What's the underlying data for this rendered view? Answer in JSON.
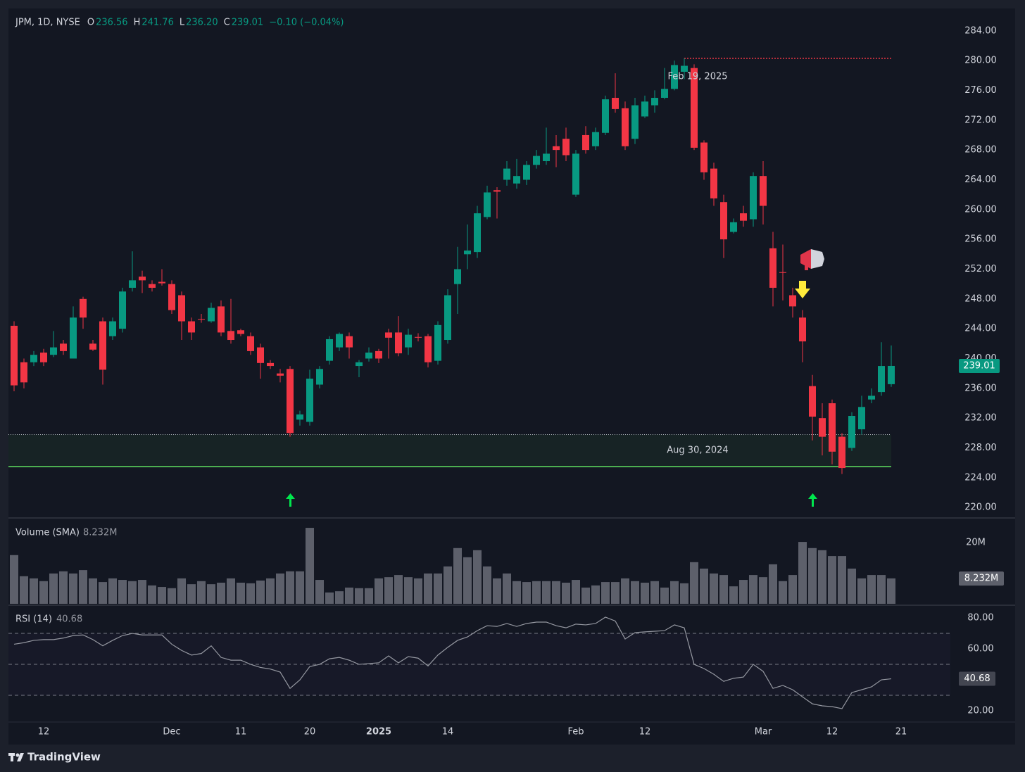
{
  "brand": "TradingView",
  "chart_data": [
    {
      "type": "candlestick",
      "symbol": "JPM, 1D, NYSE",
      "ohlc": [
        {
          "label": "O",
          "value": 236.56
        },
        {
          "label": "H",
          "value": 241.76
        },
        {
          "label": "L",
          "value": 236.2,
          "value_label": "236.20"
        },
        {
          "label": "C",
          "value": 239.01
        }
      ],
      "change": "−0.10 (−0.04%)",
      "up_color": "#089981",
      "down_color": "#f23645",
      "open": [
        244.4,
        239.5,
        239.5,
        240.8,
        240.5,
        242,
        240,
        248,
        242,
        245,
        243,
        244,
        249.5,
        251,
        250,
        250.3,
        250,
        248.5,
        245,
        245.3,
        245,
        247,
        243.7,
        243.8,
        243,
        241.5,
        239.4,
        238,
        238.6,
        231.8,
        231.5,
        236.5,
        239.7,
        241.5,
        243,
        239,
        240,
        241,
        243.5,
        243.5,
        241.5,
        242.9,
        243,
        239.7,
        242.5,
        250,
        254,
        254.3,
        259,
        262.6,
        264,
        263.5,
        264,
        266,
        266.5,
        268.5,
        269.5,
        262,
        270,
        268.5,
        270.3,
        275,
        273.6,
        269.5,
        272.5,
        274,
        275,
        276.2,
        278.5,
        279,
        269,
        265.5,
        261,
        257,
        259.5,
        258.7,
        264.5,
        254.8,
        251.6,
        248.5,
        245.5,
        236.3,
        232,
        234,
        229.5,
        228,
        230.5,
        234.5,
        235.5,
        236.56
      ],
      "high": [
        245,
        240,
        241,
        241.3,
        243.7,
        242.5,
        247,
        248.3,
        242.5,
        245.5,
        245.5,
        249.5,
        254.4,
        251.8,
        250.5,
        252,
        250.5,
        249,
        245.5,
        246,
        247.5,
        247.8,
        248,
        244,
        243.5,
        242,
        239.8,
        238.6,
        239,
        233,
        238.5,
        239,
        243,
        243.5,
        243.5,
        239.8,
        241.5,
        241.3,
        244,
        245.7,
        244,
        243.4,
        243.3,
        245,
        249.3,
        255,
        258,
        260.5,
        263.2,
        263,
        266.5,
        266.8,
        266.5,
        268,
        271,
        270,
        271,
        268,
        271.2,
        271,
        275.3,
        278.3,
        274.5,
        275,
        275.3,
        276,
        279,
        280,
        280.3,
        279.5,
        269.3,
        266.3,
        262,
        258.8,
        260.5,
        265,
        266.5,
        257,
        255.3,
        249.5,
        246.5,
        237.8,
        234,
        234.5,
        230,
        232.8,
        235,
        236,
        242.2,
        241.76
      ],
      "low": [
        235.6,
        236,
        239,
        239,
        240.2,
        240.5,
        240,
        244,
        241,
        236.5,
        242.5,
        243.5,
        249,
        248.8,
        249,
        249.8,
        246,
        242.5,
        242.5,
        244.8,
        244.8,
        243,
        242,
        243,
        240.5,
        237.3,
        238.6,
        236.8,
        229.5,
        231,
        231,
        236,
        239.2,
        241,
        240,
        237.5,
        239.6,
        239.4,
        240,
        240.3,
        240.5,
        242.3,
        238.8,
        239.2,
        242,
        246,
        252,
        253.5,
        258.7,
        258.8,
        263.2,
        262.8,
        263.3,
        265.5,
        266,
        265.7,
        266.5,
        261.7,
        267.5,
        268,
        270,
        273,
        268,
        268.8,
        272.3,
        273,
        274.8,
        276,
        277.5,
        268,
        264,
        260.5,
        253.5,
        256.8,
        257.7,
        257.7,
        258,
        247,
        247.8,
        245.5,
        239.5,
        229,
        227,
        225.8,
        224.5,
        227.6,
        229.8,
        234,
        235,
        236.2
      ],
      "close": [
        236.4,
        236.8,
        240.5,
        239.5,
        241.5,
        241,
        245.5,
        245.5,
        241.2,
        238.5,
        245,
        249,
        250.5,
        250.5,
        249.5,
        250.1,
        246.5,
        245,
        243.5,
        245.2,
        246.8,
        243.5,
        242.5,
        243.3,
        241,
        239.4,
        239,
        237.7,
        230,
        232.5,
        237.3,
        238.6,
        242.6,
        243.3,
        241.5,
        239.5,
        240.8,
        240,
        242.8,
        240.7,
        243.2,
        242.8,
        239.5,
        244.5,
        248.5,
        252,
        254.5,
        259.5,
        262.3,
        262.4,
        265.5,
        264.5,
        266,
        267.2,
        267.5,
        268,
        267.3,
        267.5,
        268,
        270.4,
        274.8,
        273.5,
        268.5,
        274,
        274.5,
        275,
        276.2,
        279.4,
        279.3,
        268.3,
        265,
        261.5,
        256,
        258.3,
        258.5,
        264.5,
        260.5,
        249.5,
        251.5,
        247,
        242.3,
        232.2,
        229.5,
        227.5,
        225.3,
        232.3,
        233.5,
        235,
        239,
        239.01
      ],
      "ylim": [
        218.6,
        287.0
      ],
      "yticks": [
        {
          "value": 284,
          "label": "284.00"
        },
        {
          "value": 280,
          "label": "280.00"
        },
        {
          "value": 276,
          "label": "276.00"
        },
        {
          "value": 272,
          "label": "272.00"
        },
        {
          "value": 268,
          "label": "268.00"
        },
        {
          "value": 264,
          "label": "264.00"
        },
        {
          "value": 260,
          "label": "260.00"
        },
        {
          "value": 256,
          "label": "256.00"
        },
        {
          "value": 252,
          "label": "252.00"
        },
        {
          "value": 248,
          "label": "248.00"
        },
        {
          "value": 244,
          "label": "244.00"
        },
        {
          "value": 240,
          "label": "240.00"
        },
        {
          "value": 236,
          "label": "236.00"
        },
        {
          "value": 232,
          "label": "232.00"
        },
        {
          "value": 228,
          "label": "228.00"
        },
        {
          "value": 224,
          "label": "224.00"
        },
        {
          "value": 220,
          "label": "220.00"
        }
      ],
      "xticks": [
        {
          "value": 3,
          "label": "12"
        },
        {
          "value": 16,
          "label": "Dec"
        },
        {
          "value": 23,
          "label": "11"
        },
        {
          "value": 30,
          "label": "20"
        },
        {
          "value": 37,
          "label": "2025"
        },
        {
          "value": 44,
          "label": "14"
        },
        {
          "value": 57,
          "label": "Feb"
        },
        {
          "value": 64,
          "label": "12"
        },
        {
          "value": 76,
          "label": "Mar"
        },
        {
          "value": 83,
          "label": "12"
        },
        {
          "value": 90,
          "label": "21"
        }
      ],
      "zone": {
        "label": "Aug 30, 2024",
        "low": 225.5,
        "high": 229.8,
        "color": "#4caf50"
      },
      "level": {
        "label": "Feb 19, 2025",
        "value": 280.3,
        "color": "#f23645"
      }
    },
    {
      "type": "bar",
      "title": "Volume (SMA)",
      "sma": 8.232,
      "sma_label": "8.232M",
      "color": "#5d606b",
      "values": [
        15.9,
        9.0,
        8.3,
        7.4,
        9.9,
        10.6,
        9.9,
        11.0,
        8.3,
        7.1,
        8.3,
        7.8,
        7.4,
        7.8,
        6.0,
        5.5,
        5.1,
        8.3,
        6.4,
        7.4,
        6.4,
        6.9,
        8.3,
        6.9,
        6.7,
        7.6,
        8.3,
        9.9,
        10.6,
        10.6,
        24.8,
        7.8,
        3.7,
        4.1,
        5.3,
        5.1,
        5.1,
        8.3,
        8.7,
        9.4,
        8.7,
        8.3,
        9.9,
        9.9,
        12.2,
        18.2,
        15.2,
        17.5,
        12.2,
        8.3,
        9.9,
        7.4,
        7.1,
        7.4,
        7.4,
        7.4,
        6.9,
        7.8,
        5.3,
        6.0,
        7.1,
        7.1,
        8.3,
        7.4,
        6.9,
        7.4,
        5.3,
        7.4,
        6.7,
        13.6,
        11.5,
        9.9,
        9.4,
        5.7,
        7.8,
        9.4,
        8.7,
        12.9,
        7.4,
        9.4,
        20.2,
        18.2,
        17.5,
        15.6,
        15.6,
        11.5,
        8.3,
        9.4,
        9.4,
        8.3
      ],
      "ylim": [
        0,
        27.8
      ],
      "yticks": [
        {
          "value": 20,
          "label": "20M"
        }
      ]
    },
    {
      "type": "line",
      "title": "RSI (14)",
      "current": 40.68,
      "color": "#9598a1",
      "values": [
        63,
        64,
        65.5,
        66,
        66,
        67,
        68.6,
        69,
        66,
        62,
        65.5,
        68.6,
        70,
        69,
        69,
        69,
        63,
        59,
        56,
        57,
        62,
        54.5,
        52.7,
        52.7,
        50,
        48,
        47,
        45,
        34.5,
        40,
        48.6,
        50,
        53.6,
        54.5,
        52.7,
        50,
        50.5,
        51,
        55.5,
        51,
        55,
        54,
        49,
        56,
        61,
        65.5,
        67.7,
        71.8,
        75,
        74.5,
        76.4,
        74.5,
        76.4,
        77.3,
        77.3,
        75,
        73.6,
        76,
        75.5,
        76.4,
        80.5,
        78,
        66.4,
        70.5,
        71,
        71.4,
        71.8,
        75.5,
        73.6,
        50,
        47.3,
        43.6,
        39,
        41,
        41.8,
        50,
        45.5,
        34.5,
        36.4,
        33.6,
        29,
        24.5,
        23.2,
        22.7,
        21.4,
        31.8,
        33.6,
        35.5,
        40,
        40.68
      ],
      "bands": [
        70,
        50,
        30
      ],
      "ylim": [
        13.2,
        87.3
      ],
      "yticks": [
        {
          "value": 80,
          "label": "80.00"
        },
        {
          "value": 60,
          "label": "60.00"
        },
        {
          "value": 20,
          "label": "20.00"
        }
      ]
    }
  ]
}
